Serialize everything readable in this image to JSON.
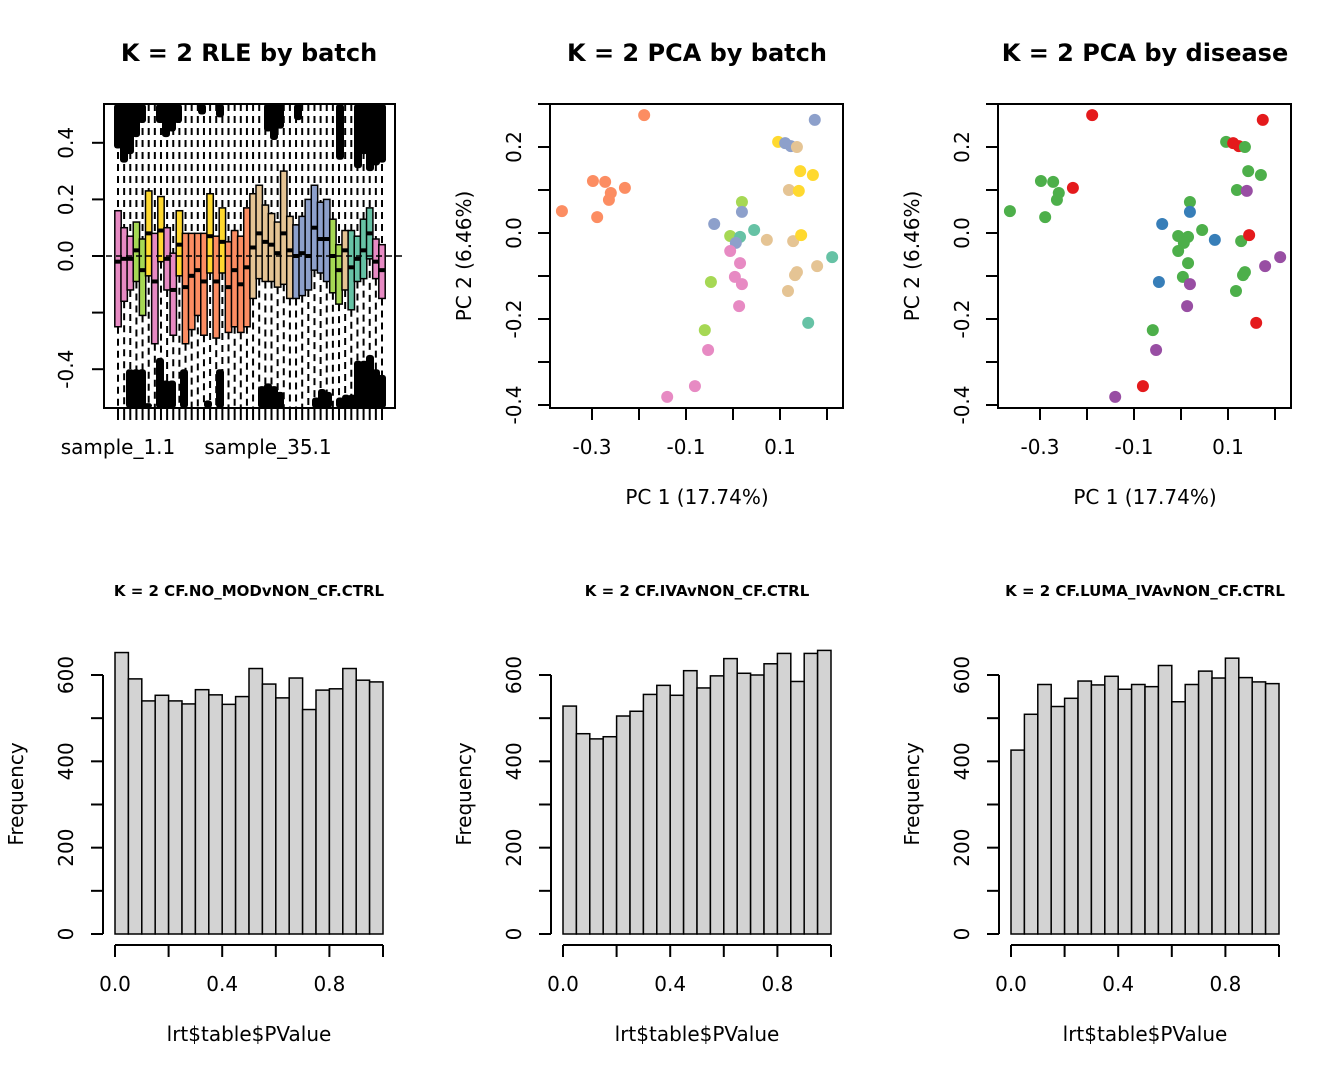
{
  "figure": {
    "panels": [
      {
        "id": "rle",
        "title": "K = 2 RLE by batch"
      },
      {
        "id": "pca-batch",
        "title": "K = 2 PCA by batch"
      },
      {
        "id": "pca-disease",
        "title": "K = 2 PCA by disease"
      },
      {
        "id": "hist1",
        "title": "K = 2 CF.NO_MODvNON_CF.CTRL"
      },
      {
        "id": "hist2",
        "title": "K = 2 CF.IVAvNON_CF.CTRL"
      },
      {
        "id": "hist3",
        "title": "K = 2 CF.LUMA_IVAvNON_CF.CTRL"
      }
    ]
  },
  "colors": {
    "batch": {
      "pink": "#e78ac3",
      "green": "#a6d854",
      "yellow": "#ffd92f",
      "orange": "#fc8d62",
      "tan": "#e5c494",
      "blue": "#8da0cb",
      "teal": "#66c2a5"
    },
    "disease": {
      "red": "#e41a1c",
      "green": "#4daf4a",
      "blue": "#377eb8",
      "purple": "#984ea3"
    },
    "hist_fill": "#d3d3d3"
  },
  "chart_data": [
    {
      "type": "boxplot",
      "title": "K = 2 RLE by batch",
      "xlabel": "",
      "ylabel": "",
      "ylim": [
        -0.53,
        0.54
      ],
      "yticks": [
        -0.4,
        -0.2,
        0.0,
        0.2,
        0.4
      ],
      "ytick_labels": [
        "-0.4",
        "",
        "0.0",
        "0.2",
        "0.4"
      ],
      "xtick_labels": [
        "sample_1.1",
        "sample_35.1"
      ],
      "hline": 0.0,
      "boxes": [
        {
          "batch": "pink",
          "q1": -0.25,
          "med": -0.02,
          "q3": 0.16
        },
        {
          "batch": "pink",
          "q1": -0.16,
          "med": -0.01,
          "q3": 0.1
        },
        {
          "batch": "pink",
          "q1": -0.12,
          "med": -0.01,
          "q3": 0.07
        },
        {
          "batch": "green",
          "q1": -0.09,
          "med": 0.02,
          "q3": 0.12
        },
        {
          "batch": "green",
          "q1": -0.21,
          "med": -0.05,
          "q3": 0.06
        },
        {
          "batch": "yellow",
          "q1": -0.07,
          "med": 0.08,
          "q3": 0.23
        },
        {
          "batch": "pink",
          "q1": -0.31,
          "med": -0.09,
          "q3": 0.08
        },
        {
          "batch": "yellow",
          "q1": -0.02,
          "med": 0.09,
          "q3": 0.21
        },
        {
          "batch": "pink",
          "q1": -0.12,
          "med": -0.01,
          "q3": 0.1
        },
        {
          "batch": "pink",
          "q1": -0.28,
          "med": -0.12,
          "q3": 0.01
        },
        {
          "batch": "yellow",
          "q1": -0.07,
          "med": 0.04,
          "q3": 0.16
        },
        {
          "batch": "orange",
          "q1": -0.31,
          "med": -0.11,
          "q3": 0.08
        },
        {
          "batch": "orange",
          "q1": -0.26,
          "med": -0.07,
          "q3": 0.08
        },
        {
          "batch": "orange",
          "q1": -0.21,
          "med": -0.05,
          "q3": 0.08
        },
        {
          "batch": "orange",
          "q1": -0.28,
          "med": -0.09,
          "q3": 0.08
        },
        {
          "batch": "yellow",
          "q1": -0.06,
          "med": 0.07,
          "q3": 0.22
        },
        {
          "batch": "orange",
          "q1": -0.29,
          "med": -0.09,
          "q3": 0.07
        },
        {
          "batch": "yellow",
          "q1": -0.06,
          "med": 0.05,
          "q3": 0.17
        },
        {
          "batch": "orange",
          "q1": -0.27,
          "med": -0.11,
          "q3": 0.05
        },
        {
          "batch": "orange",
          "q1": -0.25,
          "med": -0.05,
          "q3": 0.09
        },
        {
          "batch": "orange",
          "q1": -0.27,
          "med": -0.1,
          "q3": 0.07
        },
        {
          "batch": "orange",
          "q1": -0.25,
          "med": -0.04,
          "q3": 0.17
        },
        {
          "batch": "tan",
          "q1": -0.15,
          "med": 0.03,
          "q3": 0.22
        },
        {
          "batch": "tan",
          "q1": -0.08,
          "med": 0.08,
          "q3": 0.25
        },
        {
          "batch": "tan",
          "q1": -0.09,
          "med": 0.05,
          "q3": 0.18
        },
        {
          "batch": "tan",
          "q1": -0.09,
          "med": 0.04,
          "q3": 0.15
        },
        {
          "batch": "tan",
          "q1": -0.11,
          "med": 0.01,
          "q3": 0.12
        },
        {
          "batch": "tan",
          "q1": -0.1,
          "med": 0.08,
          "q3": 0.3
        },
        {
          "batch": "tan",
          "q1": -0.15,
          "med": 0.02,
          "q3": 0.14
        },
        {
          "batch": "blue",
          "q1": -0.15,
          "med": 0.0,
          "q3": 0.11
        },
        {
          "batch": "blue",
          "q1": -0.14,
          "med": 0.01,
          "q3": 0.14
        },
        {
          "batch": "blue",
          "q1": -0.12,
          "med": 0.0,
          "q3": 0.2
        },
        {
          "batch": "blue",
          "q1": -0.05,
          "med": 0.1,
          "q3": 0.25
        },
        {
          "batch": "blue",
          "q1": -0.06,
          "med": 0.06,
          "q3": 0.19
        },
        {
          "batch": "blue",
          "q1": -0.09,
          "med": 0.06,
          "q3": 0.2
        },
        {
          "batch": "green",
          "q1": -0.13,
          "med": 0.0,
          "q3": 0.13
        },
        {
          "batch": "green",
          "q1": -0.17,
          "med": -0.05,
          "q3": 0.04
        },
        {
          "batch": "tan",
          "q1": -0.12,
          "med": 0.02,
          "q3": 0.09
        },
        {
          "batch": "teal",
          "q1": -0.19,
          "med": -0.04,
          "q3": 0.09
        },
        {
          "batch": "teal",
          "q1": -0.09,
          "med": -0.01,
          "q3": 0.07
        },
        {
          "batch": "teal",
          "q1": -0.08,
          "med": 0.02,
          "q3": 0.13
        },
        {
          "batch": "teal",
          "q1": -0.01,
          "med": 0.08,
          "q3": 0.17
        },
        {
          "batch": "pink",
          "q1": -0.08,
          "med": -0.02,
          "q3": 0.06
        },
        {
          "batch": "pink",
          "q1": -0.15,
          "med": -0.05,
          "q3": 0.04
        }
      ]
    },
    {
      "type": "scatter",
      "title": "K = 2 PCA by batch",
      "xlabel": "PC 1 (17.74%)",
      "ylabel": "PC 2 (6.46%)",
      "xlim": [
        -0.37,
        0.215
      ],
      "ylim": [
        -0.405,
        0.3
      ],
      "xticks": [
        -0.3,
        -0.2,
        -0.1,
        0.0,
        0.1,
        0.2
      ],
      "xtick_labels": [
        "-0.3",
        "",
        "-0.1",
        "",
        "0.1",
        ""
      ],
      "yticks": [
        -0.4,
        -0.3,
        -0.2,
        -0.1,
        0.0,
        0.1,
        0.2,
        0.3
      ],
      "ytick_labels": [
        "-0.4",
        "",
        "-0.2",
        "",
        "0.0",
        "",
        "0.2",
        ""
      ],
      "color_by": "batch",
      "points": [
        {
          "x": -0.189,
          "y": 0.274,
          "batch": "orange",
          "disease": "red"
        },
        {
          "x": -0.298,
          "y": 0.121,
          "batch": "orange",
          "disease": "green"
        },
        {
          "x": -0.272,
          "y": 0.119,
          "batch": "orange",
          "disease": "green"
        },
        {
          "x": -0.26,
          "y": 0.093,
          "batch": "orange",
          "disease": "green"
        },
        {
          "x": -0.264,
          "y": 0.077,
          "batch": "orange",
          "disease": "green"
        },
        {
          "x": -0.23,
          "y": 0.105,
          "batch": "orange",
          "disease": "red"
        },
        {
          "x": -0.364,
          "y": 0.051,
          "batch": "orange",
          "disease": "green"
        },
        {
          "x": -0.289,
          "y": 0.037,
          "batch": "orange",
          "disease": "green"
        },
        {
          "x": 0.174,
          "y": 0.263,
          "batch": "blue",
          "disease": "red"
        },
        {
          "x": 0.096,
          "y": 0.212,
          "batch": "yellow",
          "disease": "green"
        },
        {
          "x": 0.111,
          "y": 0.209,
          "batch": "blue",
          "disease": "red"
        },
        {
          "x": 0.123,
          "y": 0.202,
          "batch": "blue",
          "disease": "red"
        },
        {
          "x": 0.136,
          "y": 0.2,
          "batch": "tan",
          "disease": "green"
        },
        {
          "x": 0.143,
          "y": 0.144,
          "batch": "yellow",
          "disease": "green"
        },
        {
          "x": 0.17,
          "y": 0.135,
          "batch": "yellow",
          "disease": "green"
        },
        {
          "x": 0.119,
          "y": 0.1,
          "batch": "tan",
          "disease": "green"
        },
        {
          "x": 0.14,
          "y": 0.098,
          "batch": "yellow",
          "disease": "purple"
        },
        {
          "x": 0.019,
          "y": 0.072,
          "batch": "green",
          "disease": "green"
        },
        {
          "x": 0.019,
          "y": 0.049,
          "batch": "blue",
          "disease": "blue"
        },
        {
          "x": -0.04,
          "y": 0.021,
          "batch": "blue",
          "disease": "blue"
        },
        {
          "x": 0.045,
          "y": 0.007,
          "batch": "teal",
          "disease": "green"
        },
        {
          "x": -0.006,
          "y": -0.007,
          "batch": "green",
          "disease": "green"
        },
        {
          "x": 0.015,
          "y": -0.009,
          "batch": "teal",
          "disease": "green"
        },
        {
          "x": 0.006,
          "y": -0.023,
          "batch": "blue",
          "disease": "green"
        },
        {
          "x": 0.072,
          "y": -0.016,
          "batch": "tan",
          "disease": "blue"
        },
        {
          "x": 0.128,
          "y": -0.019,
          "batch": "tan",
          "disease": "green"
        },
        {
          "x": 0.145,
          "y": -0.005,
          "batch": "yellow",
          "disease": "red"
        },
        {
          "x": -0.006,
          "y": -0.042,
          "batch": "pink",
          "disease": "green"
        },
        {
          "x": 0.211,
          "y": -0.056,
          "batch": "teal",
          "disease": "purple"
        },
        {
          "x": 0.015,
          "y": -0.07,
          "batch": "pink",
          "disease": "green"
        },
        {
          "x": 0.179,
          "y": -0.077,
          "batch": "tan",
          "disease": "purple"
        },
        {
          "x": 0.136,
          "y": -0.091,
          "batch": "tan",
          "disease": "green"
        },
        {
          "x": 0.132,
          "y": -0.098,
          "batch": "tan",
          "disease": "green"
        },
        {
          "x": -0.047,
          "y": -0.114,
          "batch": "green",
          "disease": "blue"
        },
        {
          "x": 0.004,
          "y": -0.102,
          "batch": "pink",
          "disease": "green"
        },
        {
          "x": 0.019,
          "y": -0.119,
          "batch": "pink",
          "disease": "purple"
        },
        {
          "x": 0.117,
          "y": -0.135,
          "batch": "tan",
          "disease": "green"
        },
        {
          "x": 0.013,
          "y": -0.17,
          "batch": "pink",
          "disease": "purple"
        },
        {
          "x": 0.16,
          "y": -0.209,
          "batch": "teal",
          "disease": "red"
        },
        {
          "x": -0.06,
          "y": -0.226,
          "batch": "green",
          "disease": "green"
        },
        {
          "x": -0.053,
          "y": -0.272,
          "batch": "pink",
          "disease": "purple"
        },
        {
          "x": -0.081,
          "y": -0.356,
          "batch": "pink",
          "disease": "red"
        },
        {
          "x": -0.14,
          "y": -0.381,
          "batch": "pink",
          "disease": "purple"
        }
      ]
    },
    {
      "type": "scatter",
      "title": "K = 2 PCA by disease",
      "xlabel": "PC 1 (17.74%)",
      "ylabel": "PC 2 (6.46%)",
      "xlim": [
        -0.37,
        0.215
      ],
      "ylim": [
        -0.405,
        0.3
      ],
      "xticks": [
        -0.3,
        -0.2,
        -0.1,
        0.0,
        0.1,
        0.2
      ],
      "xtick_labels": [
        "-0.3",
        "",
        "-0.1",
        "",
        "0.1",
        ""
      ],
      "yticks": [
        -0.4,
        -0.3,
        -0.2,
        -0.1,
        0.0,
        0.1,
        0.2,
        0.3
      ],
      "ytick_labels": [
        "-0.4",
        "",
        "-0.2",
        "",
        "0.0",
        "",
        "0.2",
        ""
      ],
      "color_by": "disease",
      "points_ref": "same points as PCA by batch, colored by disease"
    },
    {
      "type": "bar",
      "subtype": "histogram",
      "title": "K = 2 CF.NO_MODvNON_CF.CTRL",
      "xlabel": "lrt$table$PValue",
      "ylabel": "Frequency",
      "bin_width": 0.05,
      "xlim": [
        0,
        1
      ],
      "ylim": [
        0,
        660
      ],
      "xticks": [
        0.0,
        0.2,
        0.4,
        0.6,
        0.8,
        1.0
      ],
      "xtick_labels": [
        "0.0",
        "",
        "0.4",
        "",
        "0.8",
        ""
      ],
      "yticks": [
        0,
        100,
        200,
        300,
        400,
        500,
        600
      ],
      "ytick_labels": [
        "0",
        "",
        "200",
        "",
        "400",
        "",
        "600"
      ],
      "values": [
        652,
        591,
        540,
        553,
        540,
        533,
        566,
        554,
        532,
        550,
        615,
        579,
        547,
        593,
        520,
        565,
        568,
        615,
        588,
        584
      ]
    },
    {
      "type": "bar",
      "subtype": "histogram",
      "title": "K = 2 CF.IVAvNON_CF.CTRL",
      "xlabel": "lrt$table$PValue",
      "ylabel": "Frequency",
      "bin_width": 0.05,
      "xlim": [
        0,
        1
      ],
      "ylim": [
        0,
        660
      ],
      "xticks": [
        0.0,
        0.2,
        0.4,
        0.6,
        0.8,
        1.0
      ],
      "xtick_labels": [
        "0.0",
        "",
        "0.4",
        "",
        "0.8",
        ""
      ],
      "yticks": [
        0,
        100,
        200,
        300,
        400,
        500,
        600
      ],
      "ytick_labels": [
        "0",
        "",
        "200",
        "",
        "400",
        "",
        "600"
      ],
      "values": [
        528,
        464,
        452,
        457,
        505,
        516,
        555,
        576,
        553,
        610,
        570,
        598,
        638,
        604,
        600,
        626,
        650,
        585,
        650,
        657
      ]
    },
    {
      "type": "bar",
      "subtype": "histogram",
      "title": "K = 2 CF.LUMA_IVAvNON_CF.CTRL",
      "xlabel": "lrt$table$PValue",
      "ylabel": "Frequency",
      "bin_width": 0.05,
      "xlim": [
        0,
        1
      ],
      "ylim": [
        0,
        660
      ],
      "xticks": [
        0.0,
        0.2,
        0.4,
        0.6,
        0.8,
        1.0
      ],
      "xtick_labels": [
        "0.0",
        "",
        "0.4",
        "",
        "0.8",
        ""
      ],
      "yticks": [
        0,
        100,
        200,
        300,
        400,
        500,
        600
      ],
      "ytick_labels": [
        "0",
        "",
        "200",
        "",
        "400",
        "",
        "600"
      ],
      "values": [
        426,
        509,
        578,
        527,
        546,
        586,
        577,
        597,
        567,
        578,
        573,
        622,
        538,
        578,
        609,
        593,
        639,
        594,
        584,
        580
      ]
    }
  ]
}
